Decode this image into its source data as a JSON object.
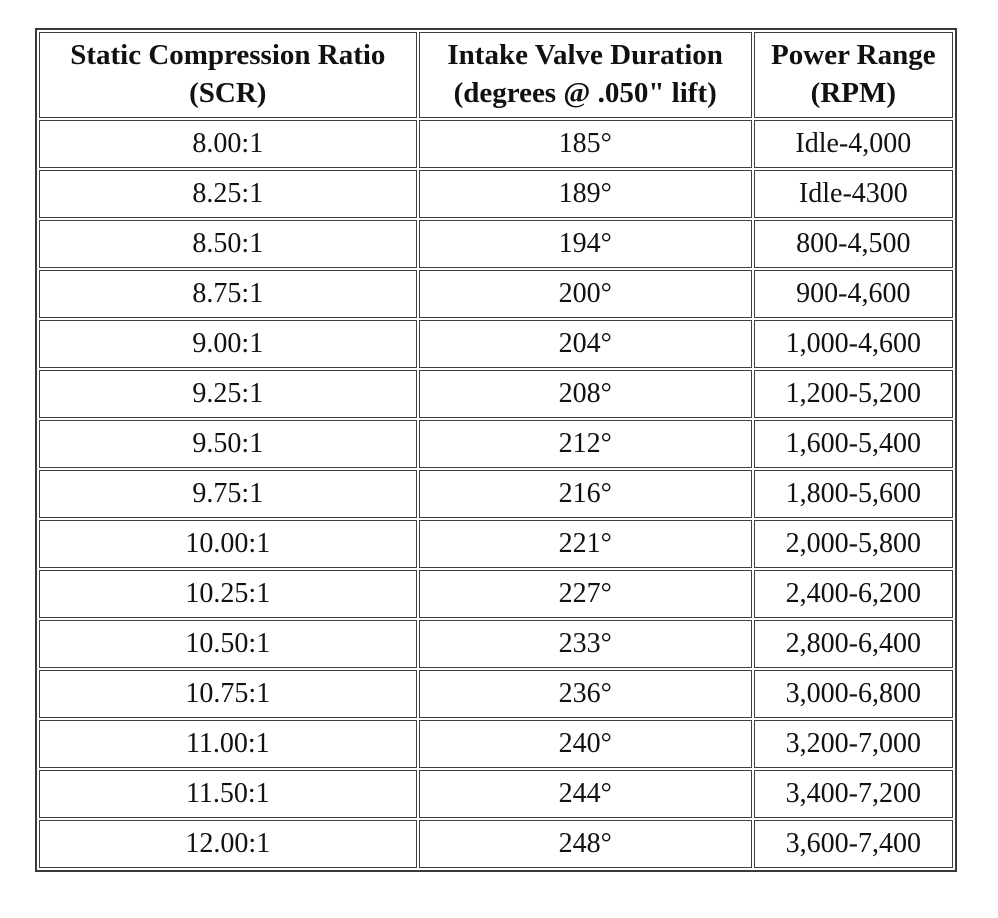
{
  "table": {
    "headers": [
      {
        "line1": "Static Compression Ratio",
        "line2": "(SCR)"
      },
      {
        "line1": "Intake Valve Duration",
        "line2": "(degrees @ .050\" lift)"
      },
      {
        "line1": "Power Range",
        "line2": "(RPM)"
      }
    ],
    "rows": [
      {
        "scr": "8.00:1",
        "duration": "185°",
        "power": "Idle-4,000"
      },
      {
        "scr": "8.25:1",
        "duration": "189°",
        "power": "Idle-4300"
      },
      {
        "scr": "8.50:1",
        "duration": "194°",
        "power": "800-4,500"
      },
      {
        "scr": "8.75:1",
        "duration": "200°",
        "power": "900-4,600"
      },
      {
        "scr": "9.00:1",
        "duration": "204°",
        "power": "1,000-4,600"
      },
      {
        "scr": "9.25:1",
        "duration": "208°",
        "power": "1,200-5,200"
      },
      {
        "scr": "9.50:1",
        "duration": "212°",
        "power": "1,600-5,400"
      },
      {
        "scr": "9.75:1",
        "duration": "216°",
        "power": "1,800-5,600"
      },
      {
        "scr": "10.00:1",
        "duration": "221°",
        "power": "2,000-5,800"
      },
      {
        "scr": "10.25:1",
        "duration": "227°",
        "power": "2,400-6,200"
      },
      {
        "scr": "10.50:1",
        "duration": "233°",
        "power": "2,800-6,400"
      },
      {
        "scr": "10.75:1",
        "duration": "236°",
        "power": "3,000-6,800"
      },
      {
        "scr": "11.00:1",
        "duration": "240°",
        "power": "3,200-7,000"
      },
      {
        "scr": "11.50:1",
        "duration": "244°",
        "power": "3,400-7,200"
      },
      {
        "scr": "12.00:1",
        "duration": "248°",
        "power": "3,600-7,400"
      }
    ]
  },
  "colors": {
    "border": "#3a3a3a",
    "text": "#111111",
    "background": "#ffffff"
  },
  "chart_data": {
    "type": "table",
    "title": "",
    "columns": [
      "Static Compression Ratio (SCR)",
      "Intake Valve Duration (degrees @ .050\" lift)",
      "Power Range (RPM)"
    ],
    "scr_values": [
      "8.00:1",
      "8.25:1",
      "8.50:1",
      "8.75:1",
      "9.00:1",
      "9.25:1",
      "9.50:1",
      "9.75:1",
      "10.00:1",
      "10.25:1",
      "10.50:1",
      "10.75:1",
      "11.00:1",
      "11.50:1",
      "12.00:1"
    ],
    "intake_duration_degrees": [
      185,
      189,
      194,
      200,
      204,
      208,
      212,
      216,
      221,
      227,
      233,
      236,
      240,
      244,
      248
    ],
    "power_range_rpm": [
      "Idle-4,000",
      "Idle-4300",
      "800-4,500",
      "900-4,600",
      "1,000-4,600",
      "1,200-5,200",
      "1,600-5,400",
      "1,800-5,600",
      "2,000-5,800",
      "2,400-6,200",
      "2,800-6,400",
      "3,000-6,800",
      "3,200-7,000",
      "3,400-7,200",
      "3,600-7,400"
    ]
  }
}
